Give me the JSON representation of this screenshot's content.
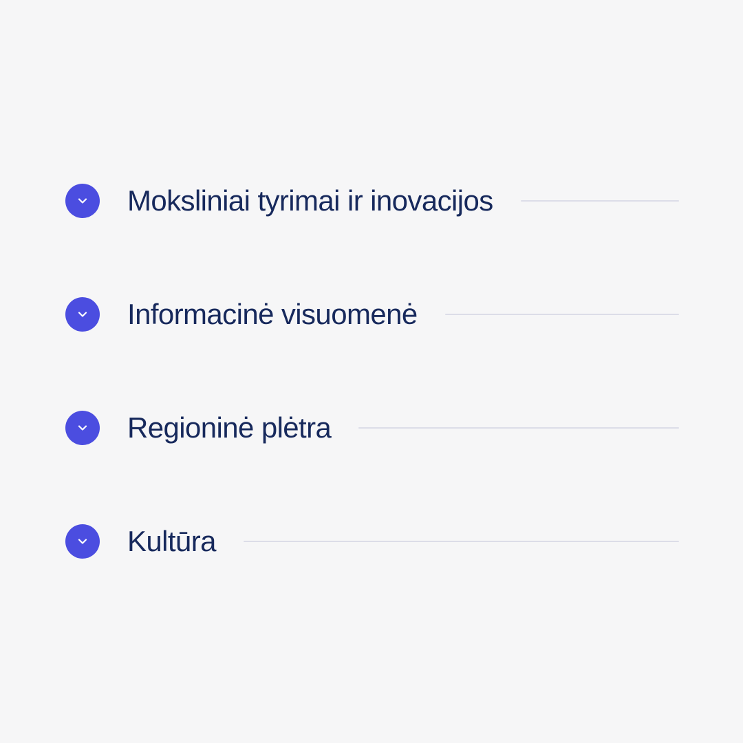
{
  "colors": {
    "background": "#f6f6f7",
    "accent": "#4b4de0",
    "text": "#17295c",
    "rule": "#dcdde8",
    "chevron": "#ffffff"
  },
  "accordion": {
    "items": [
      {
        "label": "Moksliniai tyrimai ir inovacijos",
        "icon": "chevron-down-icon"
      },
      {
        "label": "Informacinė visuomenė",
        "icon": "chevron-down-icon"
      },
      {
        "label": "Regioninė plėtra",
        "icon": "chevron-down-icon"
      },
      {
        "label": "Kultūra",
        "icon": "chevron-down-icon"
      }
    ]
  }
}
